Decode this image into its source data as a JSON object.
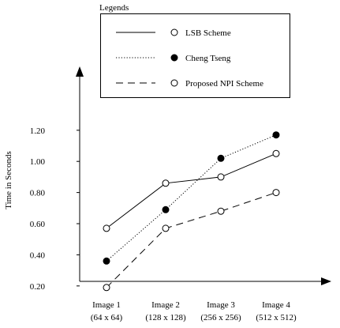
{
  "chart_data": {
    "type": "line",
    "title": "",
    "xlabel": "",
    "ylabel": "Time in Seconds",
    "legend_title": "Legends",
    "legend_placement": "top",
    "grid": false,
    "categories": [
      {
        "line1": "Image 1",
        "line2": "(64 x 64)"
      },
      {
        "line1": "Image 2",
        "line2": "(128 x 128)"
      },
      {
        "line1": "Image 3",
        "line2": "(256 x 256)"
      },
      {
        "line1": "Image 4",
        "line2": "(512 x 512)"
      }
    ],
    "yticks": [
      "0.20",
      "0.40",
      "0.60",
      "0.80",
      "1.00",
      "1.20"
    ],
    "ylim": [
      0.0,
      1.4
    ],
    "series": [
      {
        "name": "LSB Scheme",
        "line_style": "solid",
        "marker": "open-circle",
        "values": [
          0.57,
          0.86,
          0.9,
          1.05
        ]
      },
      {
        "name": "Cheng Tseng",
        "line_style": "dotted",
        "marker": "filled-circle",
        "values": [
          0.36,
          0.69,
          1.02,
          1.17
        ]
      },
      {
        "name": "Proposed NPI Scheme",
        "line_style": "dashed",
        "marker": "open-circle",
        "values": [
          0.19,
          0.57,
          0.68,
          0.8
        ]
      }
    ]
  }
}
